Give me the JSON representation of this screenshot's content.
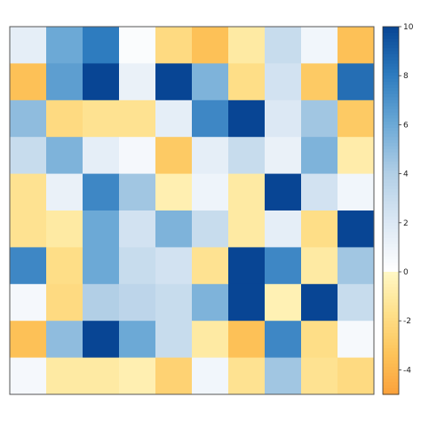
{
  "chart_data": {
    "type": "heatmap",
    "title": "",
    "xlabel": "",
    "ylabel": "",
    "rows": 10,
    "cols": 10,
    "values": [
      [
        1.5,
        6.0,
        8.0,
        0.3,
        -2.0,
        -3.5,
        -1.0,
        3.0,
        0.8,
        -3.5
      ],
      [
        -3.5,
        6.5,
        10.0,
        1.2,
        10.0,
        5.5,
        -1.8,
        2.5,
        -3.0,
        8.5
      ],
      [
        5.0,
        -2.0,
        -1.5,
        -1.5,
        1.5,
        7.5,
        10.0,
        2.0,
        4.5,
        -3.0
      ],
      [
        3.0,
        5.5,
        1.5,
        0.6,
        -3.0,
        1.5,
        3.0,
        1.2,
        5.5,
        -0.8
      ],
      [
        -1.5,
        1.2,
        7.5,
        4.5,
        -0.6,
        1.0,
        -1.0,
        10.0,
        2.5,
        0.8
      ],
      [
        -1.5,
        -1.0,
        6.0,
        2.5,
        5.5,
        3.0,
        -1.0,
        1.5,
        -1.8,
        10.0
      ],
      [
        7.5,
        -1.8,
        6.0,
        3.0,
        2.5,
        -1.5,
        10.0,
        7.5,
        -1.0,
        4.5
      ],
      [
        0.6,
        -2.0,
        4.0,
        3.5,
        3.0,
        5.5,
        10.0,
        -0.5,
        10.0,
        3.0
      ],
      [
        -3.5,
        5.0,
        10.0,
        6.0,
        3.0,
        -1.0,
        -3.5,
        7.5,
        -1.8,
        0.5
      ],
      [
        0.6,
        -1.0,
        -1.0,
        -0.6,
        -2.5,
        0.8,
        -1.5,
        4.5,
        -1.5,
        -2.0
      ]
    ],
    "zlim": [
      -5,
      10
    ],
    "colorbar_ticks": [
      10,
      8,
      6,
      4,
      2,
      0,
      -2,
      -4
    ],
    "color_scale": {
      "negative": [
        "#FFF8C6",
        "#FEE08B",
        "#FDC45A",
        "#FBA13B"
      ],
      "positive": [
        "#FFFFFF",
        "#DCE8F4",
        "#B2CFE6",
        "#6CA9D6",
        "#2E7CBF",
        "#084594"
      ]
    },
    "legend_position": "right",
    "grid": false
  }
}
